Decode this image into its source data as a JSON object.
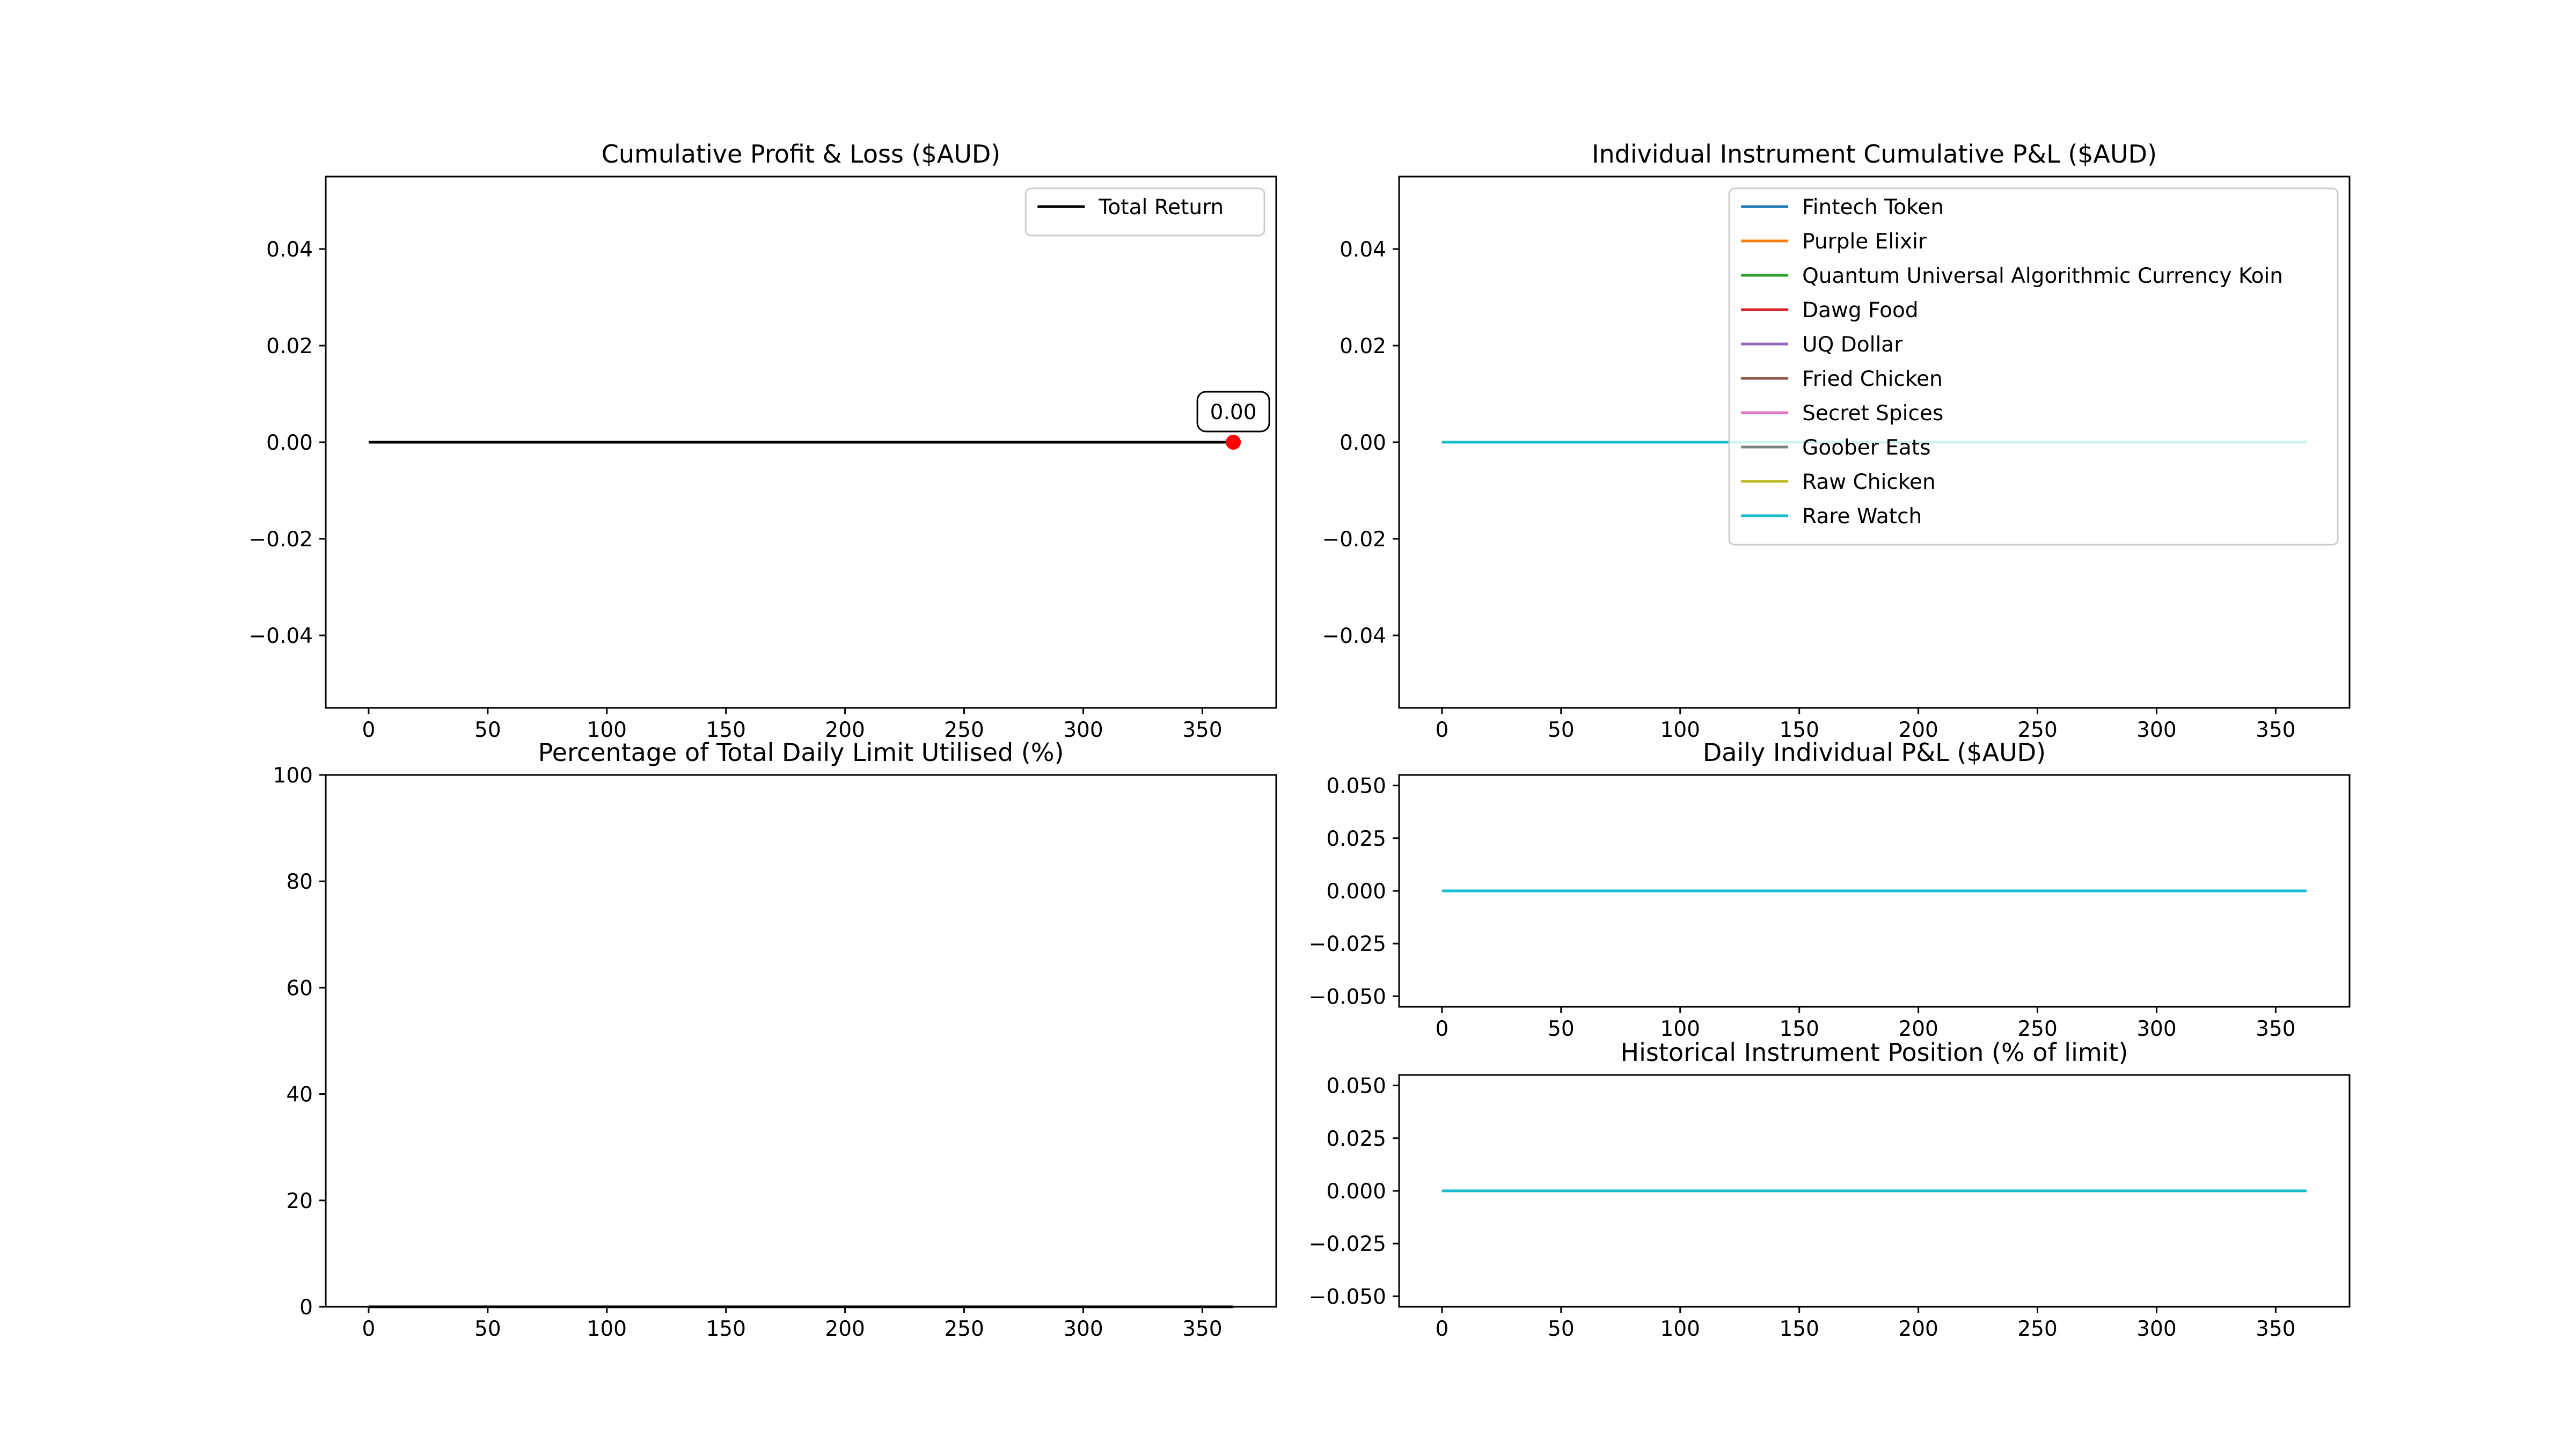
{
  "chart_data": [
    {
      "id": "cum",
      "type": "line",
      "title": "Cumulative Profit & Loss ($AUD)",
      "xlabel": "",
      "ylabel": "",
      "xlim": [
        -18,
        381
      ],
      "ylim": [
        -0.055,
        0.055
      ],
      "xticks": [
        0,
        50,
        100,
        150,
        200,
        250,
        300,
        350
      ],
      "yticks": [
        -0.04,
        -0.02,
        0.0,
        0.02,
        0.04
      ],
      "ytick_labels": [
        "−0.04",
        "−0.02",
        "0.00",
        "0.02",
        "0.04"
      ],
      "grid": false,
      "legend_position": "upper-right",
      "series": [
        {
          "name": "Total Return",
          "color": "#000000",
          "x": [
            0,
            363
          ],
          "y": [
            0,
            0
          ]
        }
      ],
      "endpoint": {
        "x": 363,
        "y": 0,
        "color": "#ff0000"
      },
      "annotations": [
        {
          "text": "0.00",
          "x": 363,
          "y": 0
        }
      ]
    },
    {
      "id": "indiv",
      "type": "line",
      "title": "Individual Instrument Cumulative P&L ($AUD)",
      "xlabel": "",
      "ylabel": "",
      "xlim": [
        -18,
        381
      ],
      "ylim": [
        -0.055,
        0.055
      ],
      "xticks": [
        0,
        50,
        100,
        150,
        200,
        250,
        300,
        350
      ],
      "yticks": [
        -0.04,
        -0.02,
        0.0,
        0.02,
        0.04
      ],
      "ytick_labels": [
        "−0.04",
        "−0.02",
        "0.00",
        "0.02",
        "0.04"
      ],
      "grid": false,
      "legend_position": "upper-right",
      "series": [
        {
          "name": "Fintech Token",
          "color": "#1f77b4",
          "x": [
            0,
            363
          ],
          "y": [
            0,
            0
          ]
        },
        {
          "name": "Purple Elixir",
          "color": "#ff7f0e",
          "x": [
            0,
            363
          ],
          "y": [
            0,
            0
          ]
        },
        {
          "name": "Quantum Universal Algorithmic Currency Koin",
          "color": "#2ca02c",
          "x": [
            0,
            363
          ],
          "y": [
            0,
            0
          ]
        },
        {
          "name": "Dawg Food",
          "color": "#d62728",
          "x": [
            0,
            363
          ],
          "y": [
            0,
            0
          ]
        },
        {
          "name": "UQ Dollar",
          "color": "#9467bd",
          "x": [
            0,
            363
          ],
          "y": [
            0,
            0
          ]
        },
        {
          "name": "Fried Chicken",
          "color": "#8c564b",
          "x": [
            0,
            363
          ],
          "y": [
            0,
            0
          ]
        },
        {
          "name": "Secret Spices",
          "color": "#e377c2",
          "x": [
            0,
            363
          ],
          "y": [
            0,
            0
          ]
        },
        {
          "name": "Goober Eats",
          "color": "#7f7f7f",
          "x": [
            0,
            363
          ],
          "y": [
            0,
            0
          ]
        },
        {
          "name": "Raw Chicken",
          "color": "#bcbd22",
          "x": [
            0,
            363
          ],
          "y": [
            0,
            0
          ]
        },
        {
          "name": "Rare Watch",
          "color": "#17becf",
          "x": [
            0,
            363
          ],
          "y": [
            0,
            0
          ]
        }
      ]
    },
    {
      "id": "pct",
      "type": "line",
      "title": "Percentage of Total Daily Limit Utilised (%)",
      "xlabel": "",
      "ylabel": "",
      "xlim": [
        -18,
        381
      ],
      "ylim": [
        0,
        100
      ],
      "xticks": [
        0,
        50,
        100,
        150,
        200,
        250,
        300,
        350
      ],
      "yticks": [
        0,
        20,
        40,
        60,
        80,
        100
      ],
      "ytick_labels": [
        "0",
        "20",
        "40",
        "60",
        "80",
        "100"
      ],
      "grid": false,
      "series": [
        {
          "color": "#000000",
          "x": [
            0,
            363
          ],
          "y": [
            0,
            0
          ]
        }
      ]
    },
    {
      "id": "daily",
      "type": "line",
      "title": "Daily Individual P&L ($AUD)",
      "xlabel": "",
      "ylabel": "",
      "xlim": [
        -18,
        381
      ],
      "ylim": [
        -0.055,
        0.055
      ],
      "xticks": [
        0,
        50,
        100,
        150,
        200,
        250,
        300,
        350
      ],
      "yticks": [
        -0.05,
        -0.025,
        0.0,
        0.025,
        0.05
      ],
      "ytick_labels": [
        "−0.050",
        "−0.025",
        "0.000",
        "0.025",
        "0.050"
      ],
      "grid": false,
      "series": [
        {
          "color": "#1f77b4",
          "x": [
            0,
            363
          ],
          "y": [
            0,
            0
          ]
        },
        {
          "color": "#17becf",
          "x": [
            0,
            363
          ],
          "y": [
            0,
            0
          ]
        }
      ]
    },
    {
      "id": "hist",
      "type": "line",
      "title": "Historical Instrument Position (% of limit)",
      "xlabel": "",
      "ylabel": "",
      "xlim": [
        -18,
        381
      ],
      "ylim": [
        -0.055,
        0.055
      ],
      "xticks": [
        0,
        50,
        100,
        150,
        200,
        250,
        300,
        350
      ],
      "yticks": [
        -0.05,
        -0.025,
        0.0,
        0.025,
        0.05
      ],
      "ytick_labels": [
        "−0.050",
        "−0.025",
        "0.000",
        "0.025",
        "0.050"
      ],
      "grid": false,
      "series": [
        {
          "color": "#1f77b4",
          "x": [
            0,
            363
          ],
          "y": [
            0,
            0
          ]
        },
        {
          "color": "#17becf",
          "x": [
            0,
            363
          ],
          "y": [
            0,
            0
          ]
        }
      ]
    }
  ]
}
